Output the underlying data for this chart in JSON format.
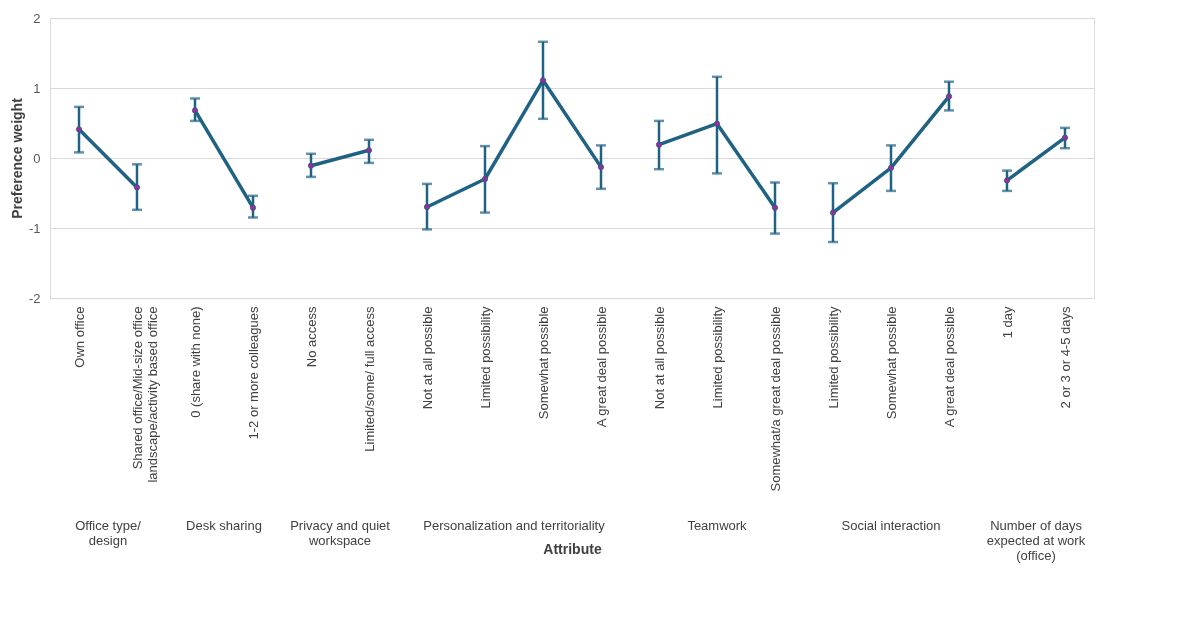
{
  "chart_data": {
    "type": "line",
    "ylabel": "Preference weight",
    "xlabel": "Attribute",
    "categories": [
      "Own office",
      "Shared office/Mid-size office landscape/activity based office",
      "0 (share with none)",
      "1-2 or more colleagues",
      "No access",
      "Limited/some/ full access",
      "Not at all possible",
      "Limited possibility",
      "Somewhat possible",
      "A great deal possible",
      "Not at all possible",
      "Limited possibility",
      "Somewhat/a great deal possible",
      "Limited possibility",
      "Somewhat possible",
      "A great deal possible",
      "1 day",
      "2 or 3 or 4-5 days"
    ],
    "annotations": [
      "Office type/ design",
      "Desk sharing",
      "Privacy and quiet workspace",
      "Personalization and territoriality",
      "Teamwork",
      "Social interaction",
      "Number of days expected at work (office)"
    ],
    "ylim": [
      -2,
      2
    ],
    "yticks": [
      -2,
      -1,
      0,
      1,
      2
    ],
    "grid": "y",
    "marker": "circle",
    "line_style": "solid",
    "tick_labels": true,
    "series": [
      {
        "color": "#1f6283",
        "colors": [
          "#a0289b",
          "#a0289b",
          null,
          null,
          null,
          null,
          null,
          null,
          null,
          null,
          null,
          null,
          null,
          null,
          null,
          null,
          null,
          null
        ],
        "values": [
          0.41,
          -0.42,
          null,
          null,
          null,
          null,
          null,
          null,
          null,
          null,
          null,
          null,
          null,
          null,
          null,
          null,
          null,
          null
        ],
        "errors": [
          [
            0.08,
            0.73
          ],
          [
            -0.74,
            -0.09
          ],
          null,
          null,
          null,
          null,
          null,
          null,
          null,
          null,
          null,
          null,
          null,
          null,
          null,
          null,
          null,
          null
        ]
      },
      {
        "color": "#1f6283",
        "colors": [
          null,
          null,
          "#a0289b",
          "#a0289b",
          null,
          null,
          null,
          null,
          null,
          null,
          null,
          null,
          null,
          null,
          null,
          null,
          null,
          null
        ],
        "values": [
          null,
          null,
          0.68,
          -0.71,
          null,
          null,
          null,
          null,
          null,
          null,
          null,
          null,
          null,
          null,
          null,
          null,
          null,
          null
        ],
        "errors": [
          null,
          null,
          [
            0.53,
            0.85
          ],
          [
            -0.85,
            -0.54
          ],
          null,
          null,
          null,
          null,
          null,
          null,
          null,
          null,
          null,
          null,
          null,
          null,
          null,
          null
        ]
      },
      {
        "color": "#1f6283",
        "colors": [
          null,
          null,
          null,
          null,
          "#a0289b",
          "#a0289b",
          null,
          null,
          null,
          null,
          null,
          null,
          null,
          null,
          null,
          null,
          null,
          null
        ],
        "values": [
          null,
          null,
          null,
          null,
          -0.11,
          0.11,
          null,
          null,
          null,
          null,
          null,
          null,
          null,
          null,
          null,
          null,
          null,
          null
        ],
        "errors": [
          null,
          null,
          null,
          null,
          [
            -0.27,
            0.06
          ],
          [
            -0.07,
            0.26
          ],
          null,
          null,
          null,
          null,
          null,
          null,
          null,
          null,
          null,
          null,
          null,
          null
        ]
      },
      {
        "color": "#1f6283",
        "colors": [
          null,
          null,
          null,
          null,
          null,
          null,
          "#a0289b",
          "#a0289b",
          "#a0289b",
          "#a0289b",
          null,
          null,
          null,
          null,
          null,
          null,
          null,
          null
        ],
        "values": [
          null,
          null,
          null,
          null,
          null,
          null,
          -0.7,
          -0.3,
          1.11,
          -0.13,
          null,
          null,
          null,
          null,
          null,
          null,
          null,
          null
        ],
        "errors": [
          null,
          null,
          null,
          null,
          null,
          null,
          [
            -1.02,
            -0.37
          ],
          [
            -0.78,
            0.17
          ],
          [
            0.56,
            1.66
          ],
          [
            -0.44,
            0.18
          ],
          null,
          null,
          null,
          null,
          null,
          null,
          null,
          null
        ]
      },
      {
        "color": "#1f6283",
        "colors": [
          null,
          null,
          null,
          null,
          null,
          null,
          null,
          null,
          null,
          null,
          "#a0289b",
          "#a0289b",
          "#a0289b",
          null,
          null,
          null,
          null,
          null
        ],
        "values": [
          null,
          null,
          null,
          null,
          null,
          null,
          null,
          null,
          null,
          null,
          0.19,
          0.49,
          -0.71,
          null,
          null,
          null,
          null,
          null
        ],
        "errors": [
          null,
          null,
          null,
          null,
          null,
          null,
          null,
          null,
          null,
          null,
          [
            -0.16,
            0.53
          ],
          [
            -0.22,
            1.16
          ],
          [
            -1.08,
            -0.35
          ],
          null,
          null,
          null,
          null,
          null
        ]
      },
      {
        "color": "#1f6283",
        "colors": [
          null,
          null,
          null,
          null,
          null,
          null,
          null,
          null,
          null,
          null,
          null,
          null,
          null,
          "#a0289b",
          "#a0289b",
          "#a0289b",
          null,
          null
        ],
        "values": [
          null,
          null,
          null,
          null,
          null,
          null,
          null,
          null,
          null,
          null,
          null,
          null,
          null,
          -0.78,
          -0.14,
          0.88,
          null,
          null
        ],
        "errors": [
          null,
          null,
          null,
          null,
          null,
          null,
          null,
          null,
          null,
          null,
          null,
          null,
          null,
          [
            -1.2,
            -0.36
          ],
          [
            -0.47,
            0.18
          ],
          [
            0.68,
            1.09
          ],
          null,
          null
        ]
      },
      {
        "color": "#1f6283",
        "colors": [
          null,
          null,
          null,
          null,
          null,
          null,
          null,
          null,
          null,
          null,
          null,
          null,
          null,
          null,
          null,
          null,
          "#a0289b",
          "#a0289b"
        ],
        "values": [
          null,
          null,
          null,
          null,
          null,
          null,
          null,
          null,
          null,
          null,
          null,
          null,
          null,
          null,
          null,
          null,
          -0.32,
          0.29
        ],
        "errors": [
          null,
          null,
          null,
          null,
          null,
          null,
          null,
          null,
          null,
          null,
          null,
          null,
          null,
          null,
          null,
          null,
          [
            -0.47,
            -0.18
          ],
          [
            0.14,
            0.43
          ]
        ]
      }
    ]
  }
}
